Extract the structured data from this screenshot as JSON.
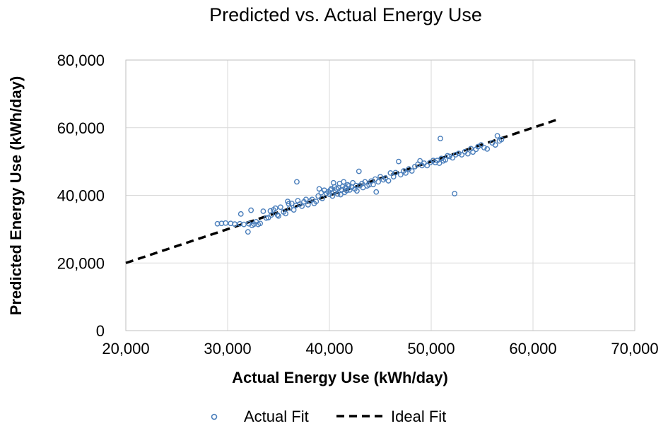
{
  "chart_data": {
    "type": "scatter",
    "title": "Predicted vs. Actual Energy Use",
    "xlabel": "Actual Energy Use (kWh/day)",
    "ylabel": "Predicted Energy Use (kWh/day)",
    "xlim": [
      20000,
      70000
    ],
    "ylim": [
      0,
      80000
    ],
    "xticks": [
      20000,
      30000,
      40000,
      50000,
      60000,
      70000
    ],
    "yticks": [
      0,
      20000,
      40000,
      60000,
      80000
    ],
    "xtick_labels": [
      "20,000",
      "30,000",
      "40,000",
      "50,000",
      "60,000",
      "70,000"
    ],
    "ytick_labels": [
      "0",
      "20,000",
      "40,000",
      "60,000",
      "80,000"
    ],
    "grid": true,
    "legend": "bottom",
    "series": [
      {
        "name": "Actual Fit",
        "kind": "scatter",
        "color": "#4a7ebb",
        "points": [
          [
            29000,
            31600
          ],
          [
            29400,
            31700
          ],
          [
            29800,
            31800
          ],
          [
            30300,
            31700
          ],
          [
            30700,
            31500
          ],
          [
            31200,
            31600
          ],
          [
            31300,
            34500
          ],
          [
            31600,
            31400
          ],
          [
            32000,
            29200
          ],
          [
            32100,
            31600
          ],
          [
            32300,
            35600
          ],
          [
            32400,
            31100
          ],
          [
            32600,
            31500
          ],
          [
            32800,
            32200
          ],
          [
            33000,
            31400
          ],
          [
            33200,
            31700
          ],
          [
            33500,
            35300
          ],
          [
            33800,
            33300
          ],
          [
            34000,
            33400
          ],
          [
            34200,
            35400
          ],
          [
            34300,
            34200
          ],
          [
            34500,
            35700
          ],
          [
            34700,
            36200
          ],
          [
            34900,
            34200
          ],
          [
            35000,
            33900
          ],
          [
            35200,
            36500
          ],
          [
            35500,
            35100
          ],
          [
            35700,
            34600
          ],
          [
            35900,
            38200
          ],
          [
            36000,
            37500
          ],
          [
            36100,
            36200
          ],
          [
            36300,
            37600
          ],
          [
            36500,
            35700
          ],
          [
            36700,
            37000
          ],
          [
            36900,
            38400
          ],
          [
            36800,
            44000
          ],
          [
            37100,
            37400
          ],
          [
            37300,
            36800
          ],
          [
            37500,
            38100
          ],
          [
            37700,
            38800
          ],
          [
            37900,
            37200
          ],
          [
            38100,
            38300
          ],
          [
            38300,
            38800
          ],
          [
            38500,
            37600
          ],
          [
            38700,
            38200
          ],
          [
            38900,
            39800
          ],
          [
            39000,
            41900
          ],
          [
            39200,
            40800
          ],
          [
            39300,
            39100
          ],
          [
            39500,
            41500
          ],
          [
            39700,
            40600
          ],
          [
            39900,
            41000
          ],
          [
            40000,
            40300
          ],
          [
            40100,
            41600
          ],
          [
            40200,
            42000
          ],
          [
            40300,
            39800
          ],
          [
            40400,
            43700
          ],
          [
            40500,
            42500
          ],
          [
            40600,
            41200
          ],
          [
            40700,
            41900
          ],
          [
            40800,
            40400
          ],
          [
            40900,
            42200
          ],
          [
            41000,
            43500
          ],
          [
            41100,
            40200
          ],
          [
            41200,
            41700
          ],
          [
            41300,
            42600
          ],
          [
            41400,
            44000
          ],
          [
            41500,
            40900
          ],
          [
            41600,
            42300
          ],
          [
            41700,
            41400
          ],
          [
            41800,
            43100
          ],
          [
            41900,
            42800
          ],
          [
            42000,
            41600
          ],
          [
            42200,
            42400
          ],
          [
            42300,
            43700
          ],
          [
            42500,
            41900
          ],
          [
            42600,
            42900
          ],
          [
            42700,
            41300
          ],
          [
            42900,
            47100
          ],
          [
            43000,
            42900
          ],
          [
            43200,
            43500
          ],
          [
            43300,
            42300
          ],
          [
            43500,
            44000
          ],
          [
            43700,
            42800
          ],
          [
            43900,
            43100
          ],
          [
            44100,
            44200
          ],
          [
            44300,
            43200
          ],
          [
            44500,
            44800
          ],
          [
            44600,
            41000
          ],
          [
            44800,
            44000
          ],
          [
            45000,
            45500
          ],
          [
            45300,
            44600
          ],
          [
            45500,
            45100
          ],
          [
            45800,
            44300
          ],
          [
            46000,
            46600
          ],
          [
            46300,
            45500
          ],
          [
            46500,
            46700
          ],
          [
            46800,
            50000
          ],
          [
            47000,
            46100
          ],
          [
            47300,
            47200
          ],
          [
            47500,
            46600
          ],
          [
            47800,
            47800
          ],
          [
            48100,
            47200
          ],
          [
            48400,
            48500
          ],
          [
            48700,
            49200
          ],
          [
            48900,
            50200
          ],
          [
            49100,
            48800
          ],
          [
            49300,
            49500
          ],
          [
            49600,
            48800
          ],
          [
            49900,
            49700
          ],
          [
            50200,
            50300
          ],
          [
            50400,
            49700
          ],
          [
            50600,
            50300
          ],
          [
            50800,
            49500
          ],
          [
            50900,
            56800
          ],
          [
            51000,
            50900
          ],
          [
            51200,
            50200
          ],
          [
            51400,
            50500
          ],
          [
            51600,
            51700
          ],
          [
            51800,
            51500
          ],
          [
            52100,
            51100
          ],
          [
            52300,
            40500
          ],
          [
            52400,
            52000
          ],
          [
            52700,
            52400
          ],
          [
            53000,
            52000
          ],
          [
            53300,
            52900
          ],
          [
            53600,
            52300
          ],
          [
            53900,
            53800
          ],
          [
            54100,
            52800
          ],
          [
            54400,
            53600
          ],
          [
            54600,
            54400
          ],
          [
            54900,
            54900
          ],
          [
            55200,
            54100
          ],
          [
            55500,
            53700
          ],
          [
            56000,
            55500
          ],
          [
            56300,
            54900
          ],
          [
            56500,
            57600
          ],
          [
            56700,
            56100
          ],
          [
            56900,
            56500
          ]
        ]
      },
      {
        "name": "Ideal Fit",
        "kind": "line",
        "style": "dashed",
        "color": "#000000",
        "points": [
          [
            20000,
            20000
          ],
          [
            62500,
            62500
          ]
        ]
      }
    ]
  }
}
